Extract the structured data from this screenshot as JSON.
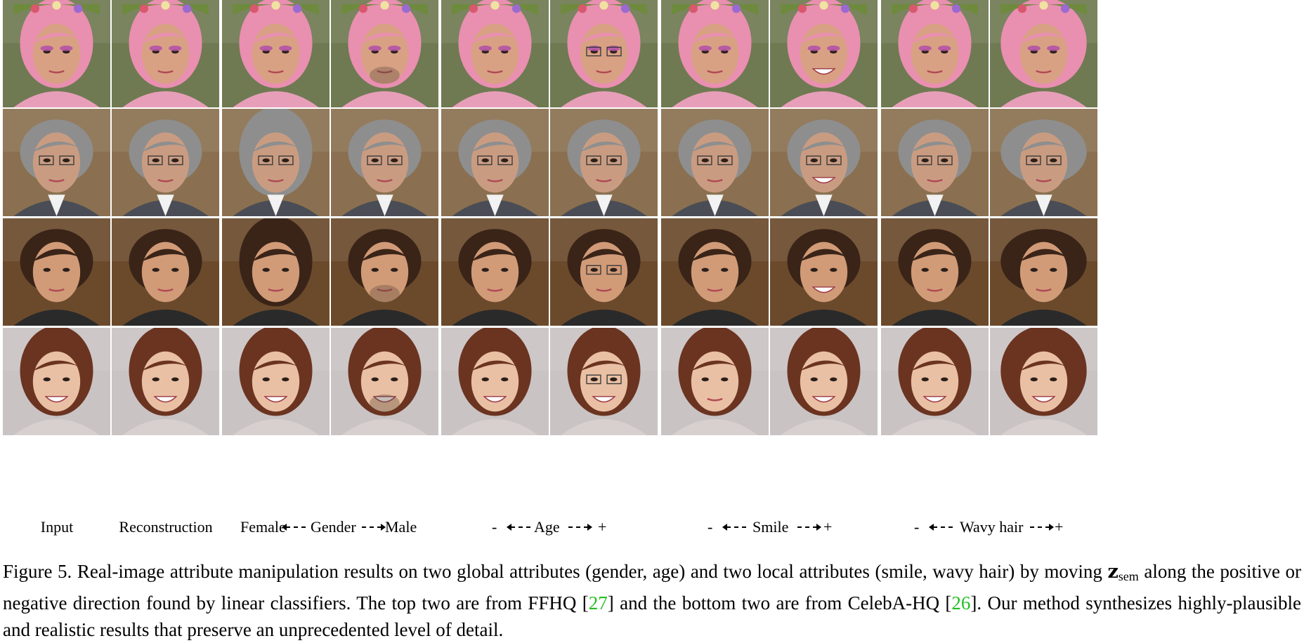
{
  "figure": {
    "rows": [
      {
        "id": "ffhq-1",
        "subject": "pink-haired woman with flower crown"
      },
      {
        "id": "ffhq-2",
        "subject": "older man with glasses"
      },
      {
        "id": "celeba-1",
        "subject": "young man with brown hair"
      },
      {
        "id": "celeba-2",
        "subject": "smiling woman with wavy auburn hair"
      }
    ],
    "columns": [
      {
        "id": "input"
      },
      {
        "id": "reconstruction"
      },
      {
        "id": "gender-neg"
      },
      {
        "id": "gender-pos"
      },
      {
        "id": "age-neg"
      },
      {
        "id": "age-pos"
      },
      {
        "id": "smile-neg"
      },
      {
        "id": "smile-pos"
      },
      {
        "id": "wavy-neg"
      },
      {
        "id": "wavy-pos"
      }
    ],
    "labels": {
      "input": "Input",
      "reconstruction": "Reconstruction",
      "gender": {
        "left": "Female",
        "center": "Gender",
        "right": "Male"
      },
      "age": {
        "left": "-",
        "center": "Age",
        "right": "+"
      },
      "smile": {
        "left": "-",
        "center": "Smile",
        "right": "+"
      },
      "wavy": {
        "left": "-",
        "center": "Wavy hair",
        "right": "+"
      }
    },
    "colors": {
      "pink_hair": "#e98fb0",
      "gray_suit": "#4a4d55",
      "brown_hair": "#3a2418",
      "auburn_hair": "#6b3420",
      "skin": "#e6b08c"
    }
  },
  "caption": {
    "prefix": "Figure 5. Real-image attribute manipulation results on two global attributes (gender, age) and two local attributes (smile, wavy hair) by moving ",
    "symbol": "z",
    "subscript": "sem",
    "middle": " along the positive or negative direction found by linear classifiers. The top two are from FFHQ [",
    "cite1": "27",
    "part3": "] and the bottom two are from CelebA-HQ [",
    "cite2": "26",
    "suffix": "]. Our method synthesizes highly-plausible and realistic results that preserve an unprecedented level of detail."
  }
}
